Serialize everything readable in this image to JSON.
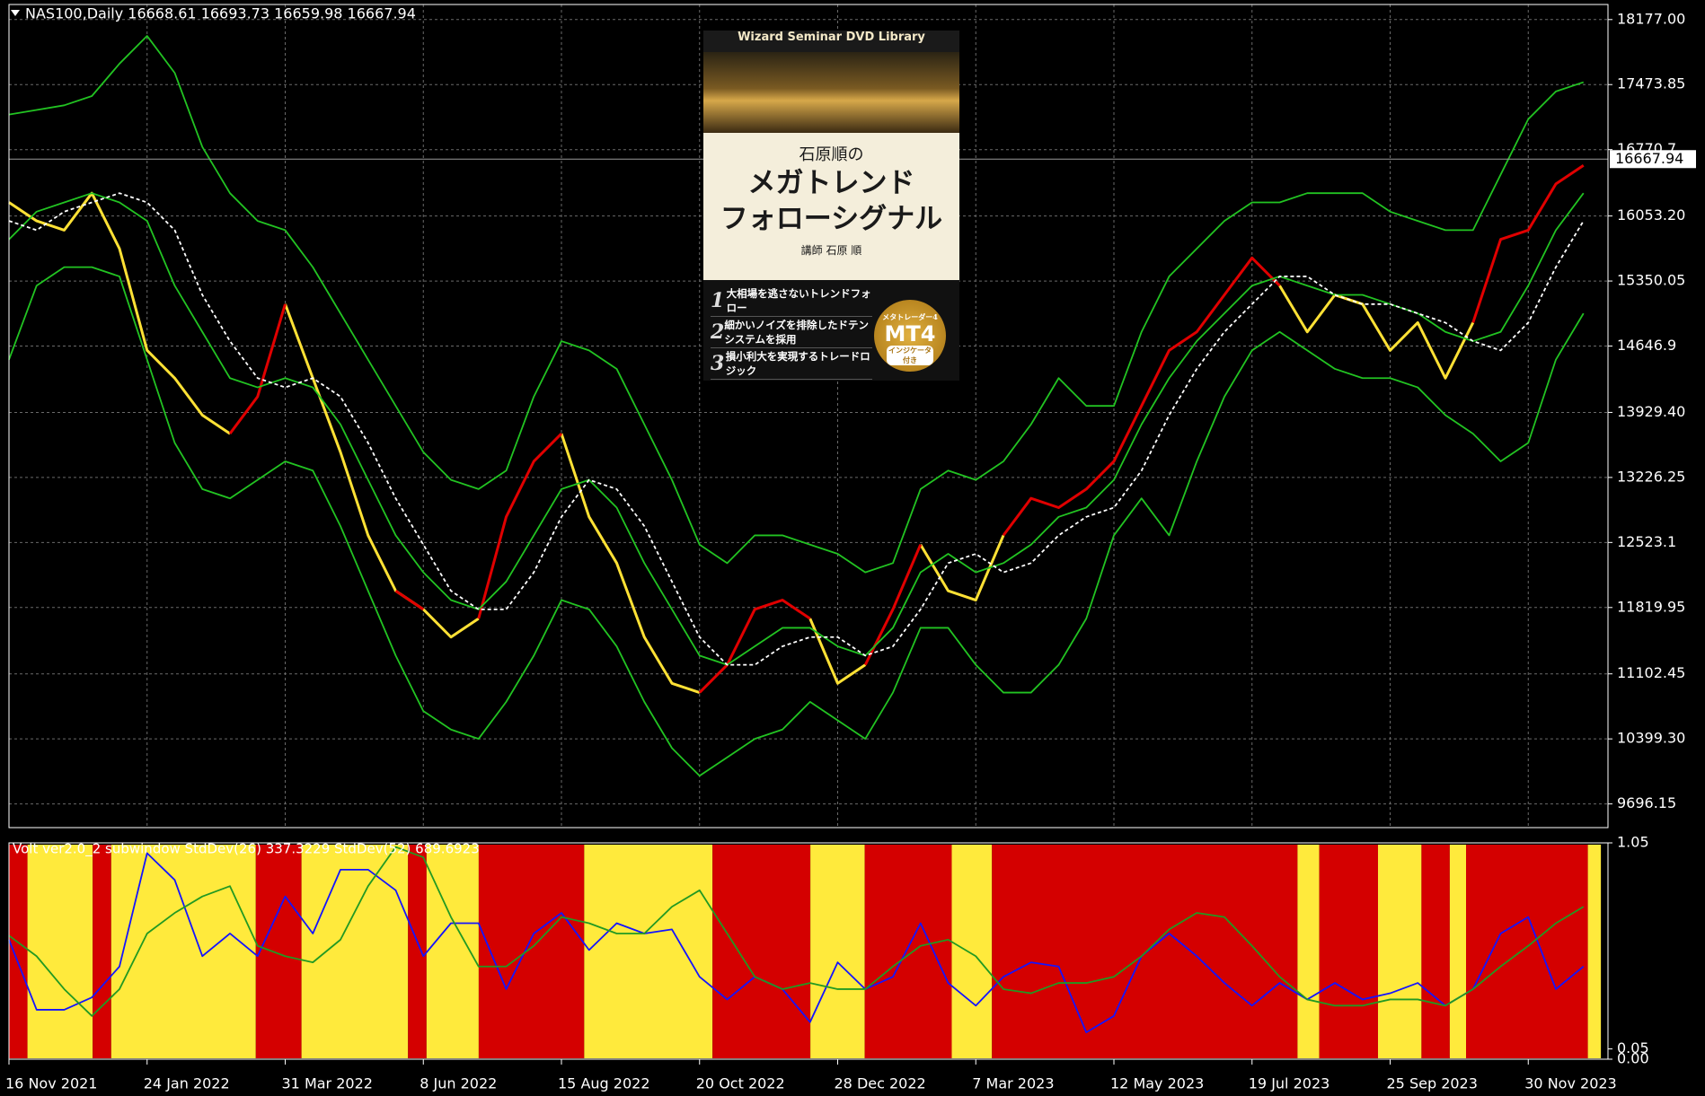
{
  "chart_data": [
    {
      "type": "line",
      "title": "NAS100,Daily  16668.61 16693.73 16659.98 16667.94",
      "categories": [
        "16 Nov 2021",
        null,
        null,
        null,
        null,
        "24 Jan 2022",
        null,
        null,
        null,
        null,
        "31 Mar 2022",
        null,
        null,
        null,
        null,
        "8 Jun 2022",
        null,
        null,
        null,
        null,
        "15 Aug 2022",
        null,
        null,
        null,
        null,
        "20 Oct 2022",
        null,
        null,
        null,
        null,
        "28 Dec 2022",
        null,
        null,
        null,
        null,
        "7 Mar 2023",
        null,
        null,
        null,
        null,
        "12 May 2023",
        null,
        null,
        null,
        null,
        "19 Jul 2023",
        null,
        null,
        null,
        null,
        "25 Sep 2023",
        null,
        null,
        null,
        null,
        "30 Nov 2023",
        null,
        null
      ],
      "series": [
        {
          "color": "#ffe135",
          "values": [
            16200,
            16000,
            15900,
            16300,
            15700,
            14600,
            14300,
            13900,
            13700,
            null,
            15100,
            14300,
            13500,
            12600,
            12000,
            11800,
            11500,
            11700,
            null,
            null,
            13700,
            12800,
            12300,
            11500,
            11000,
            10900,
            null,
            null,
            null,
            11700,
            11000,
            11200,
            null,
            12500,
            12000,
            11900,
            12600,
            null,
            null,
            null,
            null,
            null,
            null,
            null,
            null,
            null,
            15300,
            14800,
            15200,
            15100,
            14600,
            14900,
            14300,
            14900,
            null,
            null,
            null,
            null
          ]
        },
        {
          "color": "#e00000",
          "values": [
            null,
            null,
            null,
            null,
            null,
            null,
            null,
            null,
            13700,
            14100,
            15100,
            null,
            null,
            null,
            12000,
            11800,
            null,
            11700,
            12800,
            13400,
            13700,
            null,
            null,
            null,
            null,
            10900,
            11200,
            11800,
            11900,
            11700,
            null,
            11200,
            11800,
            12500,
            null,
            null,
            12600,
            13000,
            12900,
            13100,
            13400,
            14000,
            14600,
            14800,
            15200,
            15600,
            15300,
            null,
            null,
            null,
            null,
            null,
            null,
            14900,
            15800,
            15900,
            16400,
            16600
          ]
        },
        {
          "color": "#22c322",
          "values": [
            17150,
            17200,
            17250,
            17350,
            17700,
            18000,
            17600,
            16800,
            16300,
            16000,
            15900,
            15500,
            15000,
            14500,
            14000,
            13500,
            13200,
            13100,
            13300,
            14100,
            14700,
            14600,
            14400,
            13800,
            13200,
            12500,
            12300,
            12600,
            12600,
            12500,
            12400,
            12200,
            12300,
            13100,
            13300,
            13200,
            13400,
            13800,
            14300,
            14000,
            14000,
            14800,
            15400,
            15700,
            16000,
            16200,
            16200,
            16300,
            16300,
            16300,
            16100,
            16000,
            15900,
            15900,
            16500,
            17100,
            17400,
            17500
          ]
        },
        {
          "color": "#22c322",
          "values": [
            15800,
            16100,
            16200,
            16300,
            16200,
            16000,
            15300,
            14800,
            14300,
            14200,
            14300,
            14200,
            13800,
            13200,
            12600,
            12200,
            11900,
            11800,
            12100,
            12600,
            13100,
            13200,
            12900,
            12300,
            11800,
            11300,
            11200,
            11400,
            11600,
            11600,
            11400,
            11300,
            11600,
            12200,
            12400,
            12200,
            12300,
            12500,
            12800,
            12900,
            13200,
            13800,
            14300,
            14700,
            15000,
            15300,
            15400,
            15300,
            15200,
            15200,
            15100,
            15000,
            14800,
            14700,
            14800,
            15300,
            15900,
            16300
          ]
        },
        {
          "color": "#22c322",
          "values": [
            14500,
            15300,
            15500,
            15500,
            15400,
            14500,
            13600,
            13100,
            13000,
            13200,
            13400,
            13300,
            12700,
            12000,
            11300,
            10700,
            10500,
            10400,
            10800,
            11300,
            11900,
            11800,
            11400,
            10800,
            10300,
            10000,
            10200,
            10400,
            10500,
            10800,
            10600,
            10400,
            10900,
            11600,
            11600,
            11200,
            10900,
            10900,
            11200,
            11700,
            12600,
            13000,
            12600,
            13400,
            14100,
            14600,
            14800,
            14600,
            14400,
            14300,
            14300,
            14200,
            13900,
            13700,
            13400,
            13600,
            14500,
            15000
          ]
        },
        {
          "color": "#ffffff",
          "dashed": true,
          "values": [
            16000,
            15900,
            16100,
            16200,
            16300,
            16200,
            15900,
            15200,
            14700,
            14300,
            14200,
            14300,
            14100,
            13600,
            13000,
            12500,
            12000,
            11800,
            11800,
            12200,
            12800,
            13200,
            13100,
            12700,
            12100,
            11500,
            11200,
            11200,
            11400,
            11500,
            11500,
            11300,
            11400,
            11800,
            12300,
            12400,
            12200,
            12300,
            12600,
            12800,
            12900,
            13300,
            13900,
            14400,
            14800,
            15100,
            15400,
            15400,
            15200,
            15100,
            15100,
            15000,
            14900,
            14700,
            14600,
            14900,
            15500,
            16000
          ]
        }
      ],
      "ylim": [
        9440,
        18340
      ],
      "yticks": [
        {
          "value": 18177,
          "label": "18177.00"
        },
        17473.85,
        16770.7,
        {
          "value": 16053.2,
          "label": "16053.20"
        },
        15350.05,
        14646.9,
        {
          "value": 13929.4,
          "label": "13929.40"
        },
        13226.25,
        12523.1,
        {
          "value": 11819.95,
          "label": "11819.95"
        },
        11102.45,
        {
          "value": 10399.3,
          "label": "10399.30"
        },
        9696.15
      ],
      "grid": true,
      "last_price": 16667.94
    },
    {
      "type": "line",
      "title": "Volt ver2.0_2 subwindow  StdDev(26) 337.3229  StdDev(52) 689.6923",
      "series": [
        {
          "color": "#1414ff",
          "values": [
            0.58,
            0.24,
            0.24,
            0.3,
            0.45,
            1.0,
            0.87,
            0.5,
            0.61,
            0.5,
            0.79,
            0.61,
            0.92,
            0.92,
            0.82,
            0.5,
            0.66,
            0.66,
            0.34,
            0.61,
            0.71,
            0.53,
            0.66,
            0.61,
            0.63,
            0.4,
            0.29,
            0.4,
            0.34,
            0.18,
            0.47,
            0.34,
            0.4,
            0.66,
            0.37,
            0.26,
            0.4,
            0.47,
            0.45,
            0.13,
            0.21,
            0.5,
            0.61,
            0.5,
            0.37,
            0.26,
            0.37,
            0.29,
            0.37,
            0.29,
            0.32,
            0.37,
            0.26,
            0.34,
            0.61,
            0.69,
            0.34,
            0.45
          ]
        },
        {
          "color": "#229922",
          "values": [
            0.6,
            0.5,
            0.34,
            0.21,
            0.34,
            0.61,
            0.71,
            0.79,
            0.84,
            0.55,
            0.5,
            0.47,
            0.58,
            0.84,
            1.03,
            0.98,
            0.69,
            0.45,
            0.45,
            0.55,
            0.69,
            0.66,
            0.61,
            0.61,
            0.74,
            0.82,
            0.61,
            0.4,
            0.34,
            0.37,
            0.34,
            0.34,
            0.45,
            0.55,
            0.58,
            0.5,
            0.34,
            0.32,
            0.37,
            0.37,
            0.4,
            0.5,
            0.63,
            0.71,
            0.69,
            0.55,
            0.4,
            0.29,
            0.26,
            0.26,
            0.29,
            0.29,
            0.26,
            0.34,
            0.45,
            0.55,
            0.66,
            0.74
          ]
        }
      ],
      "ylim": [
        0,
        1.05
      ],
      "yticks": [
        1.05,
        0.05,
        {
          "value": 0,
          "label": "0.00"
        }
      ]
    }
  ],
  "overlay": {
    "header": "Wizard Seminar DVD Library",
    "prefix": "石原順の",
    "title_lines": [
      "メガトレンド",
      "フォローシグナル"
    ],
    "lecturer": "講師 石原 順",
    "items": [
      {
        "number": "1",
        "text": "大相場を逃さないトレンドフォロー"
      },
      {
        "number": "2",
        "text": "細かいノイズを排除したドテンシステムを採用"
      },
      {
        "number": "3",
        "text": "損小利大を実現するトレードロジック"
      }
    ],
    "badge_top": "メタトレーダー4",
    "badge": "MT4",
    "badge_bottom": "インジケータ付き"
  }
}
